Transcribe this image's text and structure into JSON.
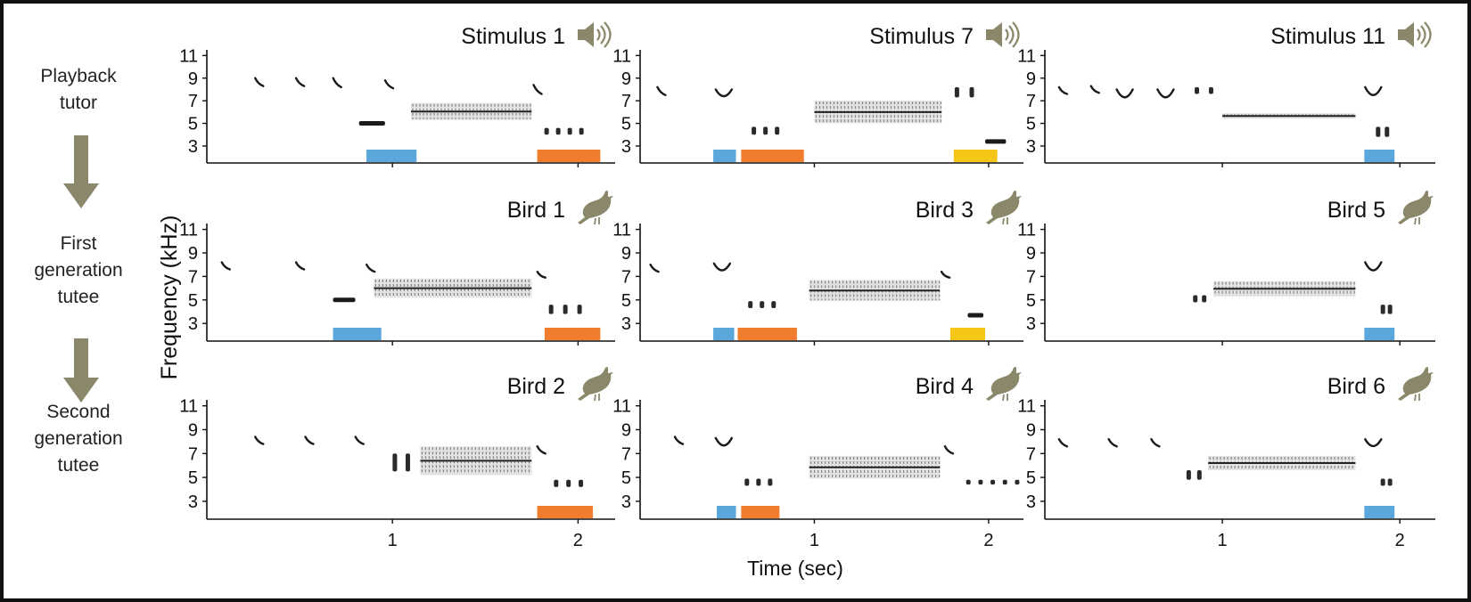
{
  "colors": {
    "accent_olive": "#8a876a",
    "blue": "#5aa7dc",
    "orange": "#f07d2e",
    "yellow": "#f5c518",
    "ink": "#111111"
  },
  "flow": {
    "stages": [
      {
        "line1": "Playback",
        "line2": "tutor"
      },
      {
        "line1": "First",
        "line2": "generation",
        "line3": "tutee"
      },
      {
        "line1": "Second",
        "line2": "generation",
        "line3": "tutee"
      }
    ],
    "arrow_icon": "down-arrow-icon"
  },
  "chart_data": {
    "type": "heatmap",
    "subtype": "spectrogram-grid",
    "ylabel": "Frequency (kHz)",
    "xlabel": "Time (sec)",
    "yticks": [
      3,
      5,
      7,
      9,
      11
    ],
    "ylim": [
      1.5,
      11.5
    ],
    "xticks": [
      1,
      2
    ],
    "xlim": [
      0,
      2.2
    ],
    "rows": [
      {
        "stage": "Playback tutor",
        "panels": [
          {
            "title": "Stimulus 1",
            "icon": "speaker-icon",
            "events": [
              {
                "kind": "slur",
                "t": 0.28,
                "f0": 9.0,
                "f1": 8.3
              },
              {
                "kind": "slur",
                "t": 0.5,
                "f0": 9.0,
                "f1": 8.3
              },
              {
                "kind": "slur",
                "t": 0.7,
                "f0": 9.0,
                "f1": 8.2
              },
              {
                "kind": "slur",
                "t": 0.98,
                "f0": 8.8,
                "f1": 8.1
              },
              {
                "kind": "bar",
                "t0": 0.82,
                "t1": 0.96,
                "f": 5.0
              },
              {
                "kind": "trill",
                "t0": 1.1,
                "t1": 1.75,
                "fl": 5.3,
                "fh": 6.8
              },
              {
                "kind": "slur",
                "t": 1.78,
                "f0": 8.4,
                "f1": 7.6
              },
              {
                "kind": "notes",
                "t0": 1.8,
                "t1": 2.05,
                "fl": 4.0,
                "fh": 4.6
              }
            ],
            "bars": [
              {
                "color": "blue",
                "t0": 0.86,
                "t1": 1.13
              },
              {
                "color": "orange",
                "t0": 1.78,
                "t1": 2.12
              }
            ]
          },
          {
            "title": "Stimulus 7",
            "icon": "speaker-icon",
            "events": [
              {
                "kind": "slur",
                "t": 0.12,
                "f0": 8.2,
                "f1": 7.5
              },
              {
                "kind": "cup",
                "t": 0.48,
                "f0": 8.0,
                "f1": 7.6
              },
              {
                "kind": "notes",
                "t0": 0.62,
                "t1": 0.82,
                "fl": 4.0,
                "fh": 4.7
              },
              {
                "kind": "trill",
                "t0": 1.0,
                "t1": 1.73,
                "fl": 5.0,
                "fh": 7.0
              },
              {
                "kind": "notes",
                "t0": 1.78,
                "t1": 1.95,
                "fl": 7.3,
                "fh": 8.2
              },
              {
                "kind": "bar",
                "t0": 1.98,
                "t1": 2.1,
                "f": 3.4
              }
            ],
            "bars": [
              {
                "color": "blue",
                "t0": 0.42,
                "t1": 0.55
              },
              {
                "color": "orange",
                "t0": 0.58,
                "t1": 0.94
              },
              {
                "color": "yellow",
                "t0": 1.8,
                "t1": 2.05
              }
            ]
          },
          {
            "title": "Stimulus 11",
            "icon": "speaker-icon",
            "events": [
              {
                "kind": "slur",
                "t": 0.1,
                "f0": 8.2,
                "f1": 7.6
              },
              {
                "kind": "slur",
                "t": 0.28,
                "f0": 8.3,
                "f1": 7.7
              },
              {
                "kind": "cup",
                "t": 0.45,
                "f0": 8.0,
                "f1": 7.4
              },
              {
                "kind": "cup",
                "t": 0.68,
                "f0": 8.0,
                "f1": 7.4
              },
              {
                "kind": "notes",
                "t0": 0.82,
                "t1": 0.98,
                "fl": 7.6,
                "fh": 8.2
              },
              {
                "kind": "trill",
                "t0": 1.0,
                "t1": 1.75,
                "fl": 5.4,
                "fh": 5.9
              },
              {
                "kind": "cup",
                "t": 1.85,
                "f0": 8.2,
                "f1": 7.6
              },
              {
                "kind": "notes",
                "t0": 1.85,
                "t1": 1.95,
                "fl": 3.8,
                "fh": 4.7
              }
            ],
            "bars": [
              {
                "color": "blue",
                "t0": 1.8,
                "t1": 1.97
              }
            ]
          }
        ]
      },
      {
        "stage": "First generation tutee",
        "panels": [
          {
            "title": "Bird 1",
            "icon": "bird-icon",
            "events": [
              {
                "kind": "slur",
                "t": 0.1,
                "f0": 8.2,
                "f1": 7.6
              },
              {
                "kind": "slur",
                "t": 0.5,
                "f0": 8.2,
                "f1": 7.6
              },
              {
                "kind": "slur",
                "t": 0.88,
                "f0": 8.0,
                "f1": 7.4
              },
              {
                "kind": "bar",
                "t0": 0.68,
                "t1": 0.8,
                "f": 5.0
              },
              {
                "kind": "trill",
                "t0": 0.9,
                "t1": 1.75,
                "fl": 5.2,
                "fh": 6.8
              },
              {
                "kind": "slur",
                "t": 1.8,
                "f0": 7.4,
                "f1": 6.9
              },
              {
                "kind": "notes",
                "t0": 1.82,
                "t1": 2.05,
                "fl": 3.8,
                "fh": 4.6
              }
            ],
            "bars": [
              {
                "color": "blue",
                "t0": 0.68,
                "t1": 0.94
              },
              {
                "color": "orange",
                "t0": 1.82,
                "t1": 2.12
              }
            ]
          },
          {
            "title": "Bird 3",
            "icon": "bird-icon",
            "events": [
              {
                "kind": "slur",
                "t": 0.08,
                "f0": 8.0,
                "f1": 7.4
              },
              {
                "kind": "cup",
                "t": 0.47,
                "f0": 8.1,
                "f1": 7.7
              },
              {
                "kind": "notes",
                "t0": 0.6,
                "t1": 0.8,
                "fl": 4.3,
                "fh": 4.9
              },
              {
                "kind": "trill",
                "t0": 0.97,
                "t1": 1.72,
                "fl": 4.9,
                "fh": 6.7
              },
              {
                "kind": "slur",
                "t": 1.75,
                "f0": 7.4,
                "f1": 6.9
              },
              {
                "kind": "bar",
                "t0": 1.88,
                "t1": 1.97,
                "f": 3.7
              }
            ],
            "bars": [
              {
                "color": "blue",
                "t0": 0.42,
                "t1": 0.54
              },
              {
                "color": "orange",
                "t0": 0.56,
                "t1": 0.9
              },
              {
                "color": "yellow",
                "t0": 1.78,
                "t1": 1.98
              }
            ]
          },
          {
            "title": "Bird 5",
            "icon": "bird-icon",
            "events": [
              {
                "kind": "notes",
                "t0": 0.82,
                "t1": 0.92,
                "fl": 4.8,
                "fh": 5.4
              },
              {
                "kind": "trill",
                "t0": 0.95,
                "t1": 1.75,
                "fl": 5.3,
                "fh": 6.6
              },
              {
                "kind": "cup",
                "t": 1.85,
                "f0": 8.2,
                "f1": 7.6
              },
              {
                "kind": "notes",
                "t0": 1.88,
                "t1": 1.96,
                "fl": 3.8,
                "fh": 4.6
              }
            ],
            "bars": [
              {
                "color": "blue",
                "t0": 1.8,
                "t1": 1.97
              }
            ]
          }
        ]
      },
      {
        "stage": "Second generation tutee",
        "panels": [
          {
            "title": "Bird 2",
            "icon": "bird-icon",
            "events": [
              {
                "kind": "slur",
                "t": 0.28,
                "f0": 8.4,
                "f1": 7.8
              },
              {
                "kind": "slur",
                "t": 0.55,
                "f0": 8.4,
                "f1": 7.8
              },
              {
                "kind": "slur",
                "t": 0.82,
                "f0": 8.4,
                "f1": 7.8
              },
              {
                "kind": "notes",
                "t0": 0.98,
                "t1": 1.12,
                "fl": 5.5,
                "fh": 7.0
              },
              {
                "kind": "trill",
                "t0": 1.15,
                "t1": 1.75,
                "fl": 5.2,
                "fh": 7.6
              },
              {
                "kind": "slur",
                "t": 1.8,
                "f0": 7.6,
                "f1": 7.0
              },
              {
                "kind": "notes",
                "t0": 1.85,
                "t1": 2.05,
                "fl": 4.2,
                "fh": 4.8
              }
            ],
            "bars": [
              {
                "color": "orange",
                "t0": 1.78,
                "t1": 2.08
              }
            ]
          },
          {
            "title": "Bird 4",
            "icon": "bird-icon",
            "events": [
              {
                "kind": "slur",
                "t": 0.22,
                "f0": 8.4,
                "f1": 7.8
              },
              {
                "kind": "cup",
                "t": 0.48,
                "f0": 8.3,
                "f1": 7.8
              },
              {
                "kind": "notes",
                "t0": 0.58,
                "t1": 0.78,
                "fl": 4.3,
                "fh": 4.9
              },
              {
                "kind": "trill",
                "t0": 0.97,
                "t1": 1.72,
                "fl": 4.9,
                "fh": 6.8
              },
              {
                "kind": "slur",
                "t": 1.77,
                "f0": 7.6,
                "f1": 7.0
              },
              {
                "kind": "notes",
                "t0": 1.85,
                "t1": 2.2,
                "fl": 4.4,
                "fh": 4.8
              }
            ],
            "bars": [
              {
                "color": "blue",
                "t0": 0.44,
                "t1": 0.55
              },
              {
                "color": "orange",
                "t0": 0.58,
                "t1": 0.8
              }
            ]
          },
          {
            "title": "Bird 6",
            "icon": "bird-icon",
            "events": [
              {
                "kind": "slur",
                "t": 0.1,
                "f0": 8.2,
                "f1": 7.6
              },
              {
                "kind": "slur",
                "t": 0.38,
                "f0": 8.2,
                "f1": 7.6
              },
              {
                "kind": "slur",
                "t": 0.62,
                "f0": 8.2,
                "f1": 7.6
              },
              {
                "kind": "notes",
                "t0": 0.78,
                "t1": 0.9,
                "fl": 4.8,
                "fh": 5.6
              },
              {
                "kind": "trill",
                "t0": 0.92,
                "t1": 1.75,
                "fl": 5.6,
                "fh": 6.8
              },
              {
                "kind": "cup",
                "t": 1.85,
                "f0": 8.2,
                "f1": 7.8
              },
              {
                "kind": "notes",
                "t0": 1.88,
                "t1": 1.96,
                "fl": 4.3,
                "fh": 4.9
              }
            ],
            "bars": [
              {
                "color": "blue",
                "t0": 1.8,
                "t1": 1.97
              }
            ]
          }
        ]
      }
    ]
  }
}
